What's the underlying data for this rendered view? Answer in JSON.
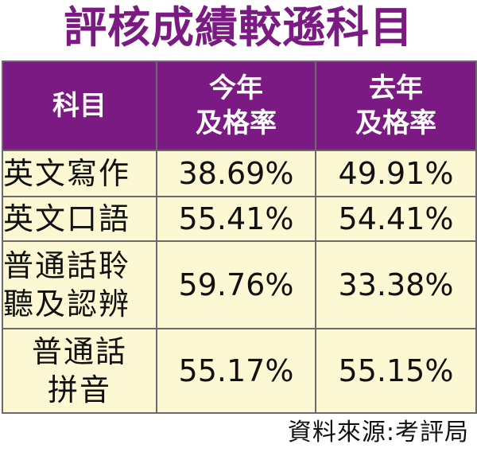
{
  "title": "評核成績較遜科目",
  "chart_data": {
    "type": "table",
    "title": "評核成績較遜科目",
    "columns": [
      {
        "line1": "科目",
        "line2": ""
      },
      {
        "line1": "今年",
        "line2": "及格率"
      },
      {
        "line1": "去年",
        "line2": "及格率"
      }
    ],
    "rows": [
      {
        "subject": [
          "英文寫作"
        ],
        "this_year": "38.69%",
        "last_year": "49.91%"
      },
      {
        "subject": [
          "英文口語"
        ],
        "this_year": "55.41%",
        "last_year": "54.41%"
      },
      {
        "subject": [
          "普通話聆",
          "聽及認辨"
        ],
        "this_year": "59.76%",
        "last_year": "33.38%"
      },
      {
        "subject": [
          "普通話",
          "拼音"
        ],
        "this_year": "55.17%",
        "last_year": "55.15%"
      }
    ]
  },
  "colors": {
    "title": "#7a1a82",
    "header_bg": "#7a1a82",
    "header_text": "#ffffff",
    "cell_bg": "#fcf8d4",
    "border": "#6b6b6b"
  },
  "source": "資料來源:考評局"
}
